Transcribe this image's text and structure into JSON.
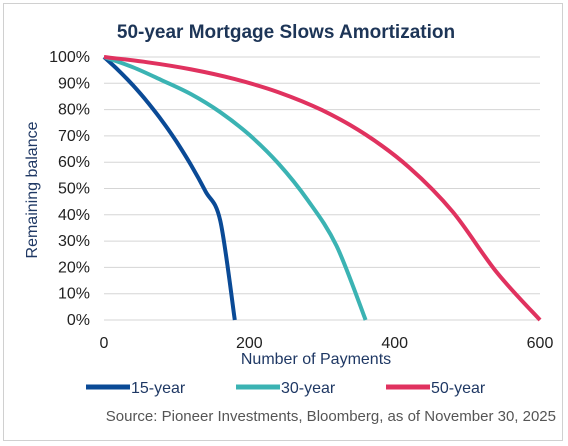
{
  "chart_data": {
    "type": "line",
    "title": "50-year Mortgage Slows Amortization",
    "xlabel": "Number of Payments",
    "ylabel": "Remaining balance",
    "xlim": [
      0,
      600
    ],
    "ylim": [
      0,
      100
    ],
    "xticks": [
      "0",
      "200",
      "400",
      "600"
    ],
    "yticks": [
      "0%",
      "10%",
      "20%",
      "30%",
      "40%",
      "50%",
      "60%",
      "70%",
      "80%",
      "90%",
      "100%"
    ],
    "grid": true,
    "legend_position": "bottom",
    "series": [
      {
        "name": "15-year",
        "color": "#0a4a96",
        "x": [
          0,
          20,
          40,
          60,
          80,
          100,
          120,
          140,
          160,
          180
        ],
        "y": [
          100,
          94.9,
          89.2,
          82.8,
          75.7,
          67.7,
          58.8,
          48.8,
          37.7,
          0
        ]
      },
      {
        "name": "30-year",
        "color": "#3bb3b3",
        "x": [
          0,
          40,
          80,
          120,
          160,
          200,
          240,
          280,
          320,
          360
        ],
        "y": [
          100,
          96.1,
          91.1,
          85.8,
          79.0,
          70.4,
          59.5,
          45.7,
          28.2,
          0
        ]
      },
      {
        "name": "50-year",
        "color": "#e0325f",
        "x": [
          0,
          60,
          120,
          180,
          240,
          300,
          360,
          420,
          480,
          540,
          600
        ],
        "y": [
          100,
          98.0,
          95.3,
          91.6,
          86.6,
          79.8,
          70.5,
          58.0,
          41.1,
          18.3,
          0
        ]
      }
    ],
    "source": "Source: Pioneer Investments, Bloomberg, as of November 30, 2025"
  }
}
